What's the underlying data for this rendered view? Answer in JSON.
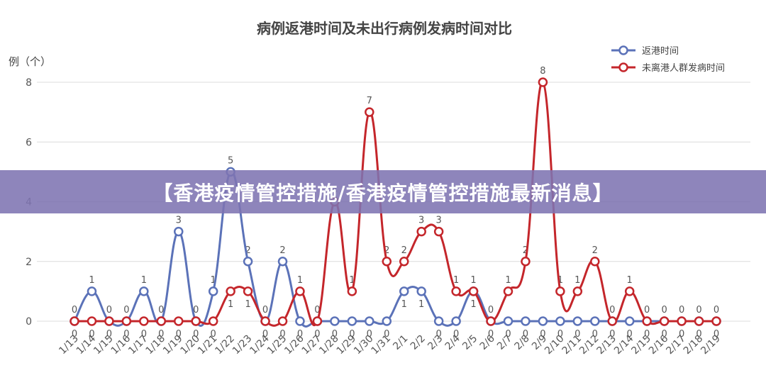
{
  "chart_data": {
    "type": "line",
    "title": "病例返港时间及未出行病例发病时间对比",
    "ylabel": "例（个）",
    "xlabel": "",
    "ylim": [
      0,
      8
    ],
    "yticks": [
      0,
      2,
      4,
      6,
      8
    ],
    "grid": true,
    "legend_position": "top-right",
    "categories": [
      "1/13",
      "1/14",
      "1/15",
      "1/16",
      "1/17",
      "1/18",
      "1/19",
      "1/20",
      "1/21",
      "1/22",
      "1/23",
      "1/24",
      "1/25",
      "1/26",
      "1/27",
      "1/28",
      "1/29",
      "1/30",
      "1/31",
      "2/1",
      "2/2",
      "2/3",
      "2/4",
      "2/5",
      "2/6",
      "2/7",
      "2/8",
      "2/9",
      "2/10",
      "2/11",
      "2/12",
      "2/13",
      "2/14",
      "2/15",
      "2/16",
      "2/17",
      "2/18",
      "2/19"
    ],
    "series": [
      {
        "name": "返港时间",
        "color": "#5b72b8",
        "values": [
          0,
          1,
          0,
          0,
          1,
          0,
          3,
          0,
          1,
          5,
          2,
          0,
          2,
          0,
          0,
          0,
          0,
          0,
          0,
          1,
          1,
          0,
          0,
          1,
          0,
          0,
          0,
          0,
          0,
          0,
          0,
          0,
          0,
          0,
          0,
          0,
          0,
          0
        ]
      },
      {
        "name": "未离港人群发病时间",
        "color": "#c4262b",
        "values": [
          0,
          0,
          0,
          0,
          0,
          0,
          0,
          0,
          0,
          1,
          1,
          0,
          0,
          1,
          0,
          4,
          1,
          7,
          2,
          2,
          3,
          3,
          1,
          1,
          0,
          1,
          2,
          8,
          1,
          1,
          2,
          0,
          1,
          0,
          0,
          0,
          0,
          0
        ]
      }
    ]
  },
  "banner": {
    "text": "【香港疫情管控措施/香港疫情管控措施最新消息】"
  }
}
